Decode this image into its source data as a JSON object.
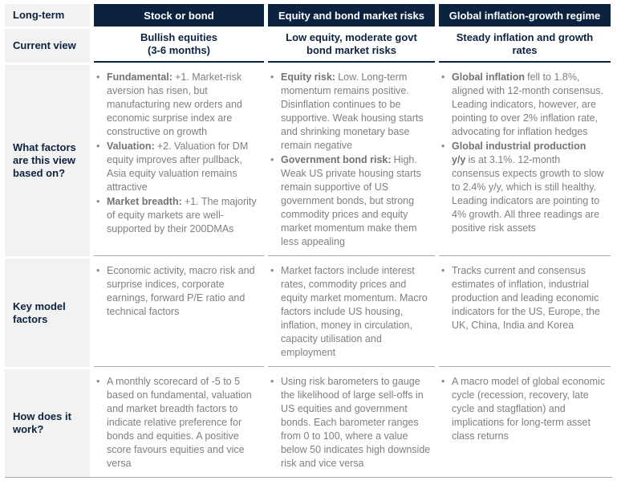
{
  "colors": {
    "accent_navy": "#0c2340",
    "label_background": "#f2f2f2",
    "body_text": "#7f7f7f",
    "divider_gray": "#a9a9a9"
  },
  "row_labels": {
    "long_term": "Long-term",
    "current_view": "Current view",
    "factors": "What factors are this view based on?",
    "key_model": "Key model factors",
    "how_works": "How does it work?"
  },
  "columns": [
    {
      "header": "Stock or bond",
      "current_view": [
        "Bullish equities",
        "(3-6 months)"
      ],
      "factors": [
        {
          "lead": "Fundamental:",
          "text": "+1. Market-risk aversion has risen, but manufacturing new orders and economic surprise index are constructive on growth"
        },
        {
          "lead": "Valuation:",
          "text": "+2. Valuation for DM equity improves after pullback, Asia equity valuation remains attractive"
        },
        {
          "lead": "Market breadth:",
          "text": "+1. The majority of equity markets are well-supported by their 200DMAs"
        }
      ],
      "key_model_factors": "Economic activity, macro risk and surprise indices, corporate earnings, forward P/E ratio and technical factors",
      "how_it_works": "A monthly scorecard of -5 to 5 based on fundamental, valuation and market breadth factors to indicate relative preference for bonds and equities. A positive score favours equities and vice versa"
    },
    {
      "header": "Equity and bond market risks",
      "current_view": [
        "Low equity, moderate govt",
        "bond market risks"
      ],
      "factors": [
        {
          "lead": "Equity risk:",
          "text": "Low. Long-term momentum remains positive. Disinflation continues to be supportive. Weak housing starts and shrinking monetary base remain negative"
        },
        {
          "lead": "Government bond risk:",
          "text": "High. Weak US private housing starts remain supportive of US government bonds, but strong commodity prices and equity market momentum make them less appealing"
        }
      ],
      "key_model_factors": "Market factors include interest rates, commodity prices and equity market momentum. Macro factors include US housing, inflation, money in circulation, capacity utilisation and employment",
      "how_it_works": "Using risk barometers to gauge the likelihood of large sell-offs in US equities and government bonds. Each barometer ranges from 0 to 100, where a value below 50 indicates high downside risk and vice versa"
    },
    {
      "header": "Global inflation-growth regime",
      "current_view": [
        "Steady inflation and growth",
        "rates"
      ],
      "factors": [
        {
          "lead": "Global inflation",
          "text": "fell to 1.8%, aligned with 12-month consensus. Leading indicators, however, are pointing to over 2% inflation rate, advocating for inflation hedges"
        },
        {
          "lead": "Global industrial production y/y",
          "text": "is at 3.1%. 12-month consensus expects growth to slow to 2.4% y/y, which is still healthy. Leading indicators are pointing to 4% growth. All three readings are positive risk assets"
        }
      ],
      "key_model_factors": "Tracks current and consensus estimates of inflation, industrial production and leading economic indicators for the US, Europe, the UK, China, India and Korea",
      "how_it_works": "A macro model of global economic cycle (recession, recovery, late cycle and stagflation) and implications for long-term asset class returns"
    }
  ]
}
